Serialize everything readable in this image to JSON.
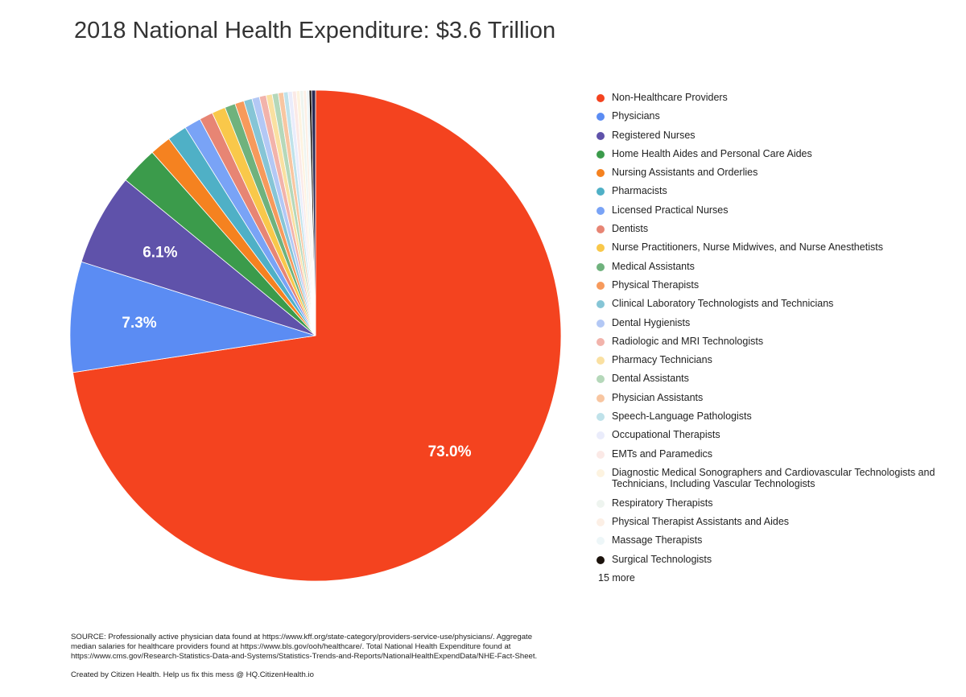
{
  "chart_data": {
    "type": "pie",
    "title": "2018 National Health Expenditure: $3.6 Trillion",
    "series": [
      {
        "name": "Non-Healthcare Providers",
        "value": 73.0,
        "color": "#f4431f",
        "label": "73.0%"
      },
      {
        "name": "Physicians",
        "value": 7.3,
        "color": "#5b8cf3",
        "label": "7.3%"
      },
      {
        "name": "Registered Nurses",
        "value": 6.1,
        "color": "#5f52aa",
        "label": "6.1%"
      },
      {
        "name": "Home Health Aides and Personal Care Aides",
        "value": 2.5,
        "color": "#3b9b4b",
        "label": ""
      },
      {
        "name": "Nursing Assistants and Orderlies",
        "value": 1.4,
        "color": "#f58220",
        "label": ""
      },
      {
        "name": "Pharmacists",
        "value": 1.3,
        "color": "#4fb0c6",
        "label": ""
      },
      {
        "name": "Licensed Practical Nurses",
        "value": 1.1,
        "color": "#79a3f6",
        "label": ""
      },
      {
        "name": "Dentists",
        "value": 0.9,
        "color": "#e78574",
        "label": ""
      },
      {
        "name": "Nurse Practitioners, Nurse Midwives, and Nurse Anesthetists",
        "value": 0.9,
        "color": "#f9c84a",
        "label": ""
      },
      {
        "name": "Medical Assistants",
        "value": 0.7,
        "color": "#6fb27d",
        "label": ""
      },
      {
        "name": "Physical Therapists",
        "value": 0.6,
        "color": "#f79a5c",
        "label": ""
      },
      {
        "name": "Clinical Laboratory Technologists and Technicians",
        "value": 0.55,
        "color": "#86c5d6",
        "label": ""
      },
      {
        "name": "Dental Hygienists",
        "value": 0.5,
        "color": "#b3c8f5",
        "label": ""
      },
      {
        "name": "Radiologic and MRI Technologists",
        "value": 0.45,
        "color": "#f2b3ab",
        "label": ""
      },
      {
        "name": "Pharmacy Technicians",
        "value": 0.4,
        "color": "#fae0a1",
        "label": ""
      },
      {
        "name": "Dental Assistants",
        "value": 0.4,
        "color": "#b5d8ba",
        "label": ""
      },
      {
        "name": "Physician Assistants",
        "value": 0.35,
        "color": "#f8c6a1",
        "label": ""
      },
      {
        "name": "Speech-Language Pathologists",
        "value": 0.3,
        "color": "#bfe2ea",
        "label": ""
      },
      {
        "name": "Occupational Therapists",
        "value": 0.28,
        "color": "#eaecfb",
        "label": ""
      },
      {
        "name": "EMTs and Paramedics",
        "value": 0.26,
        "color": "#fbe9e6",
        "label": ""
      },
      {
        "name": "Diagnostic Medical Sonographers and Cardiovascular Technologists and Technicians, Including Vascular Technologists",
        "value": 0.24,
        "color": "#fdf3e0",
        "label": ""
      },
      {
        "name": "Respiratory Therapists",
        "value": 0.22,
        "color": "#eef4ef",
        "label": ""
      },
      {
        "name": "Physical Therapist Assistants and Aides",
        "value": 0.2,
        "color": "#fcefe5",
        "label": ""
      },
      {
        "name": "Massage Therapists",
        "value": 0.18,
        "color": "#edf6f8",
        "label": ""
      },
      {
        "name": "Surgical Technologists",
        "value": 0.16,
        "color": "#1b120c",
        "label": ""
      },
      {
        "name": "",
        "value": 0.26,
        "color": "#2b2b55",
        "label": ""
      }
    ],
    "legend_more": "15 more",
    "legend_position": "right"
  },
  "footer": {
    "source_line1": "SOURCE: Professionally active physician data found at https://www.kff.org/state-category/providers-service-use/physicians/. Aggregate",
    "source_line2": "median salaries for healthcare providers found at https://www.bls.gov/ooh/healthcare/. Total National Health Expenditure found at",
    "source_line3": "https://www.cms.gov/Research-Statistics-Data-and-Systems/Statistics-Trends-and-Reports/NationalHealthExpendData/NHE-Fact-Sheet.",
    "credit": "Created by Citizen Health. Help us fix this mess @ HQ.CitizenHealth.io"
  }
}
